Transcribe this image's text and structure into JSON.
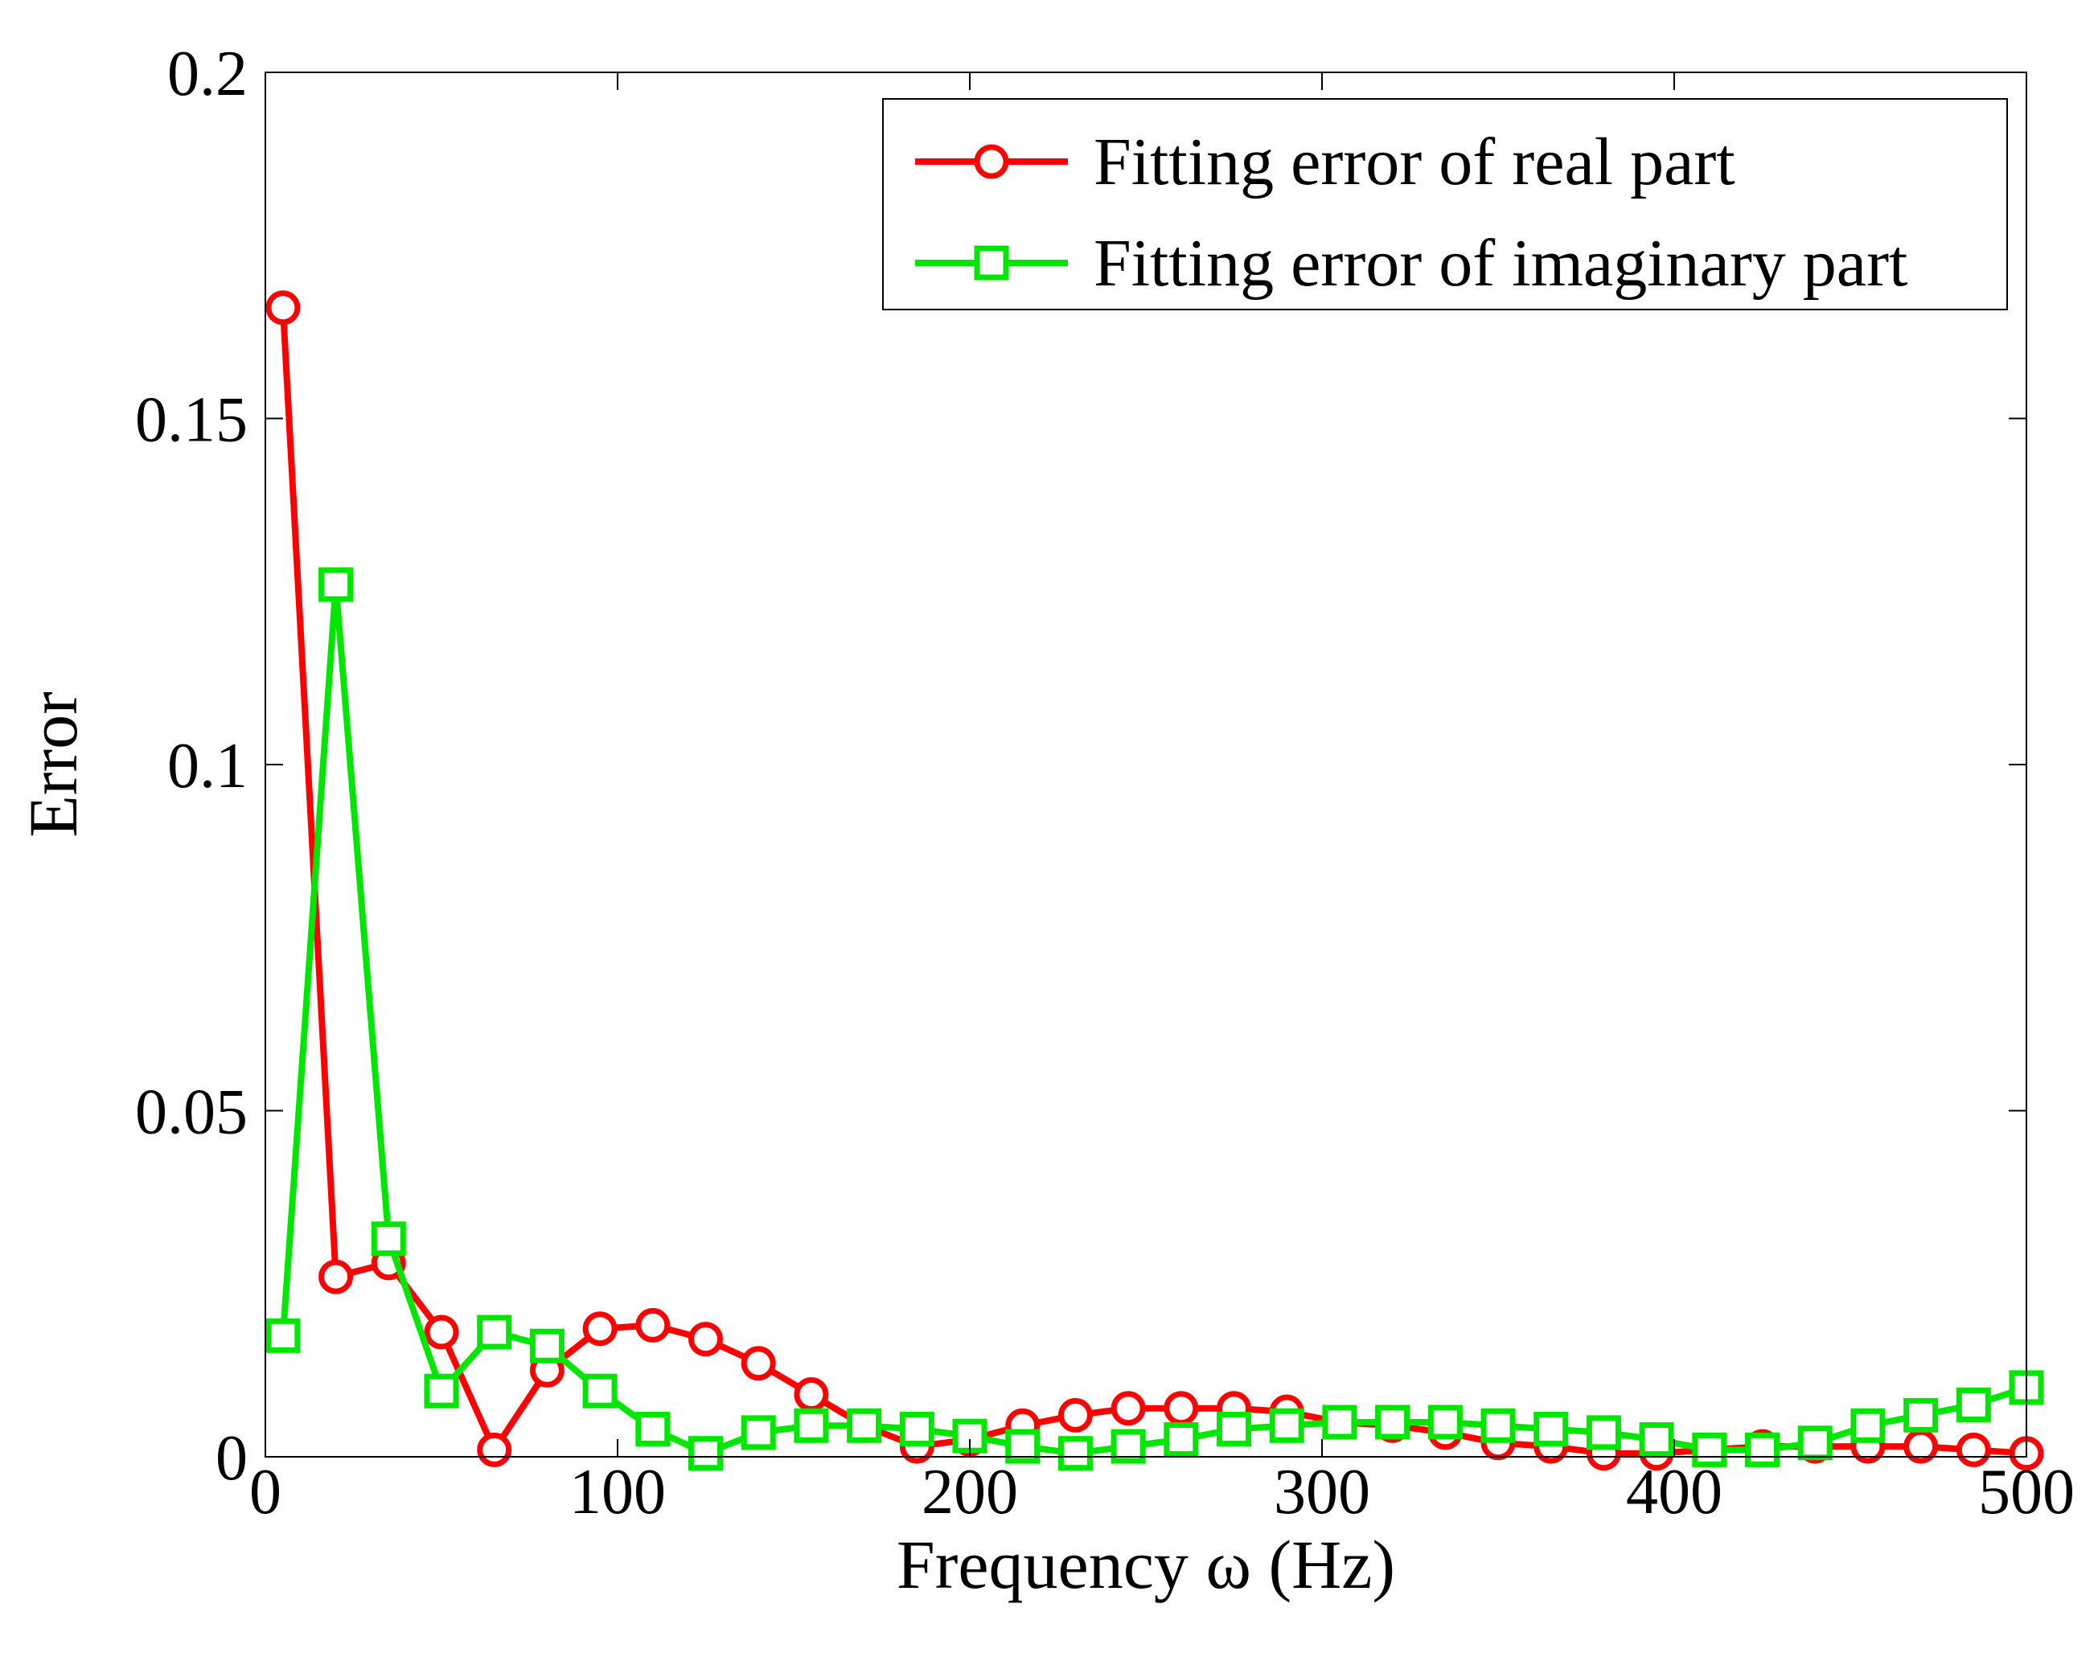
{
  "chart_data": {
    "type": "line",
    "title": "",
    "xlabel": "Frequency ω (Hz)",
    "ylabel": "Error",
    "xlim": [
      0,
      500
    ],
    "ylim": [
      0,
      0.2
    ],
    "xticks": [
      0,
      100,
      200,
      300,
      400,
      500
    ],
    "xtick_labels": [
      "0",
      "100",
      "200",
      "300",
      "400",
      "500"
    ],
    "yticks": [
      0,
      0.05,
      0.1,
      0.15,
      0.2
    ],
    "ytick_labels": [
      "0",
      "0.05",
      "0.1",
      "0.15",
      "0.2"
    ],
    "grid": false,
    "legend_position": "top-right",
    "x": [
      5,
      20,
      35,
      50,
      65,
      80,
      95,
      110,
      125,
      140,
      155,
      170,
      185,
      200,
      215,
      230,
      245,
      260,
      275,
      290,
      305,
      320,
      335,
      350,
      365,
      380,
      395,
      410,
      425,
      440,
      455,
      470,
      485,
      500
    ],
    "series": [
      {
        "name": "Fitting error of real part",
        "color": "#ff0000",
        "marker": "circle",
        "values": [
          0.166,
          0.026,
          0.028,
          0.018,
          0.001,
          0.0125,
          0.0185,
          0.019,
          0.017,
          0.0135,
          0.009,
          0.0045,
          0.0015,
          0.0025,
          0.0045,
          0.006,
          0.007,
          0.007,
          0.007,
          0.0065,
          0.005,
          0.0045,
          0.0035,
          0.002,
          0.0015,
          0.0005,
          0.0005,
          0.001,
          0.0015,
          0.0015,
          0.0015,
          0.0015,
          0.001,
          0.0005
        ]
      },
      {
        "name": "Fitting error of imaginary part",
        "color": "#00e600",
        "marker": "square",
        "values": [
          0.0175,
          0.126,
          0.0315,
          0.0095,
          0.018,
          0.016,
          0.0095,
          0.004,
          0.0005,
          0.0035,
          0.0045,
          0.0045,
          0.004,
          0.003,
          0.0015,
          0.0005,
          0.0015,
          0.0025,
          0.004,
          0.0045,
          0.005,
          0.005,
          0.005,
          0.0045,
          0.004,
          0.0035,
          0.0025,
          0.001,
          0.001,
          0.002,
          0.0045,
          0.006,
          0.0075,
          0.01
        ]
      }
    ]
  }
}
